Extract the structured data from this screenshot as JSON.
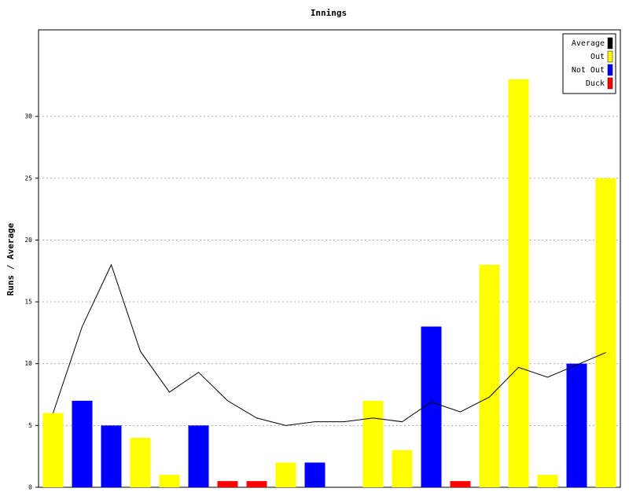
{
  "chart_data": {
    "type": "bar",
    "title": "Innings",
    "y_label": "Runs / Average",
    "categories": [
      null,
      null,
      null,
      null,
      null,
      null,
      null,
      null,
      null,
      null,
      null,
      null,
      null,
      null,
      null,
      null,
      null,
      null,
      null,
      null
    ],
    "series": [
      {
        "name": "Average",
        "color": "#000000",
        "type": "line",
        "values": [
          6,
          13,
          18,
          11,
          7.7,
          9.3,
          7,
          5.6,
          5,
          5.3,
          5.3,
          5.6,
          5.3,
          6.9,
          6.1,
          7.3,
          9.7,
          8.9,
          9.9,
          10.9
        ]
      },
      {
        "name": "Out",
        "color": "#ffff00",
        "type": "bar",
        "values": [
          6,
          null,
          null,
          4,
          1,
          null,
          null,
          null,
          2,
          null,
          null,
          7,
          3,
          null,
          null,
          18,
          33,
          1,
          null,
          25
        ]
      },
      {
        "name": "Not Out",
        "color": "#0000ff",
        "type": "bar",
        "values": [
          null,
          7,
          5,
          null,
          null,
          5,
          null,
          null,
          null,
          2,
          null,
          null,
          null,
          13,
          null,
          null,
          null,
          null,
          10,
          null
        ]
      },
      {
        "name": "Duck",
        "color": "#ff0000",
        "type": "bar",
        "values": [
          null,
          null,
          null,
          null,
          null,
          null,
          0.5,
          0.5,
          null,
          null,
          null,
          null,
          null,
          null,
          0.5,
          null,
          null,
          null,
          null,
          null
        ]
      }
    ],
    "ylim": [
      0,
      37
    ],
    "yticks": [
      0,
      5,
      10,
      15,
      20,
      25,
      30
    ],
    "grid": true,
    "legend": "top-right"
  }
}
